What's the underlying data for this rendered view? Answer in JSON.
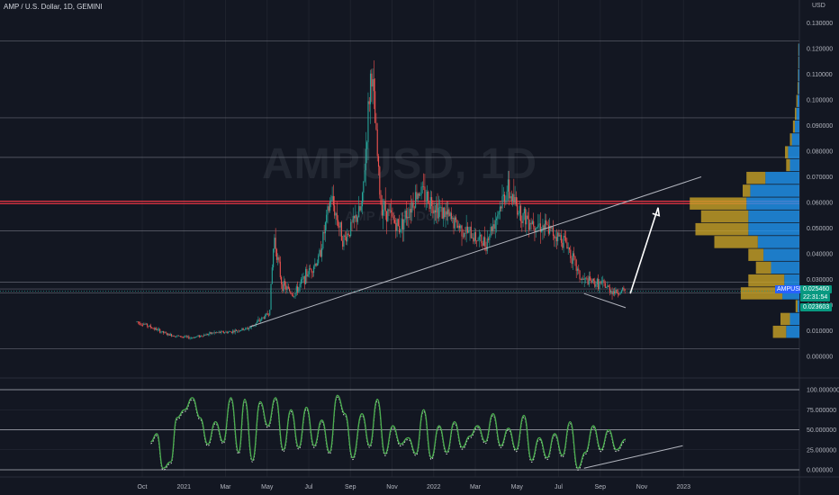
{
  "header": {
    "symbol": "AMP / U.S. Dollar, 1D, GEMINI",
    "currency": "USD",
    "watermark": "AMPUSD, 1D",
    "watermark_sub": "AMP / U.S. Dollar"
  },
  "tags": {
    "name": "AMPUSD",
    "price": "0.025460",
    "countdown": "22:31:54",
    "low": "0.023603"
  },
  "colors": {
    "background": "#131722",
    "candle_up": "#26a69a",
    "candle_down": "#ef5350",
    "resistance": "#f23645",
    "oscillator": "#4caf50",
    "vp_up": "#2196f3",
    "vp_down": "#c9a227"
  },
  "chart_data": [
    {
      "type": "candlestick",
      "title": "AMP / U.S. Dollar, 1D, GEMINI",
      "y_axis": {
        "label": "USD",
        "ticks": [
          "0.130000",
          "0.120000",
          "0.110000",
          "0.100000",
          "0.090000",
          "0.080000",
          "0.070000",
          "0.060000",
          "0.050000",
          "0.040000",
          "0.030000",
          "0.020000",
          "0.010000",
          "0.000000"
        ],
        "ylim": [
          0.0,
          0.13
        ]
      },
      "x_axis": {
        "ticks": [
          "Oct",
          "2021",
          "Mar",
          "May",
          "Jul",
          "Sep",
          "Nov",
          "2022",
          "Mar",
          "May",
          "Jul",
          "Sep",
          "Nov",
          "2023"
        ]
      },
      "price_path": [
        {
          "t": 0,
          "v": 0.0135
        },
        {
          "t": 0.5,
          "v": 0.0125
        },
        {
          "t": 2,
          "v": 0.0085
        },
        {
          "t": 3.5,
          "v": 0.0072
        },
        {
          "t": 5,
          "v": 0.0092
        },
        {
          "t": 6,
          "v": 0.0095
        },
        {
          "t": 7.3,
          "v": 0.011
        },
        {
          "t": 8.6,
          "v": 0.017
        },
        {
          "t": 8.9,
          "v": 0.047
        },
        {
          "t": 9.4,
          "v": 0.028
        },
        {
          "t": 10.2,
          "v": 0.024
        },
        {
          "t": 11,
          "v": 0.032
        },
        {
          "t": 11.8,
          "v": 0.038
        },
        {
          "t": 12.6,
          "v": 0.062
        },
        {
          "t": 13.4,
          "v": 0.045
        },
        {
          "t": 14.6,
          "v": 0.058
        },
        {
          "t": 15.2,
          "v": 0.113
        },
        {
          "t": 15.8,
          "v": 0.06
        },
        {
          "t": 17,
          "v": 0.05
        },
        {
          "t": 18.3,
          "v": 0.065
        },
        {
          "t": 19.5,
          "v": 0.058
        },
        {
          "t": 21,
          "v": 0.05
        },
        {
          "t": 22.6,
          "v": 0.044
        },
        {
          "t": 24,
          "v": 0.065
        },
        {
          "t": 25,
          "v": 0.055
        },
        {
          "t": 26.5,
          "v": 0.05
        },
        {
          "t": 27.8,
          "v": 0.045
        },
        {
          "t": 28.8,
          "v": 0.03
        },
        {
          "t": 30.2,
          "v": 0.028
        },
        {
          "t": 31,
          "v": 0.025
        },
        {
          "t": 31.7,
          "v": 0.0255
        }
      ],
      "horizontal_levels": [
        0.123,
        0.093,
        0.0776,
        0.049,
        0.0289,
        0.0263,
        0.0248,
        0.003
      ],
      "resistance_lines": [
        0.0605,
        0.0596
      ],
      "trendline": {
        "from": {
          "t": 7.3,
          "v": 0.0115
        },
        "to": {
          "t": 36.6,
          "v": 0.07
        }
      },
      "support_trendline": {
        "from": {
          "t": 29,
          "v": 0.0245
        },
        "to": {
          "t": 31.7,
          "v": 0.019
        }
      },
      "arrow": {
        "from": {
          "t": 32,
          "v": 0.0245
        },
        "to": {
          "t": 33.8,
          "v": 0.058
        }
      },
      "volume_profile": [
        {
          "price": 0.0095,
          "up": 0.35,
          "down": 0.35
        },
        {
          "price": 0.0145,
          "up": 0.25,
          "down": 0.25
        },
        {
          "price": 0.0195,
          "up": 0.05,
          "down": 0.05
        },
        {
          "price": 0.0245,
          "up": 0.45,
          "down": 1.1
        },
        {
          "price": 0.0295,
          "up": 0.4,
          "down": 0.95
        },
        {
          "price": 0.0345,
          "up": 0.75,
          "down": 0.4
        },
        {
          "price": 0.0395,
          "up": 0.95,
          "down": 0.4
        },
        {
          "price": 0.0445,
          "up": 1.1,
          "down": 1.15
        },
        {
          "price": 0.0495,
          "up": 1.35,
          "down": 1.4
        },
        {
          "price": 0.0545,
          "up": 1.35,
          "down": 1.25
        },
        {
          "price": 0.0595,
          "up": 1.4,
          "down": 1.5
        },
        {
          "price": 0.0645,
          "up": 1.3,
          "down": 0.2
        },
        {
          "price": 0.0695,
          "up": 0.9,
          "down": 0.5
        },
        {
          "price": 0.0745,
          "up": 0.25,
          "down": 0.1
        },
        {
          "price": 0.0795,
          "up": 0.3,
          "down": 0.08
        },
        {
          "price": 0.0845,
          "up": 0.2,
          "down": 0.05
        },
        {
          "price": 0.0895,
          "up": 0.12,
          "down": 0.05
        },
        {
          "price": 0.0945,
          "up": 0.08,
          "down": 0.04
        },
        {
          "price": 0.0995,
          "up": 0.05,
          "down": 0.03
        },
        {
          "price": 0.1045,
          "up": 0.03,
          "down": 0.02
        },
        {
          "price": 0.1095,
          "up": 0.03,
          "down": 0.01
        },
        {
          "price": 0.1145,
          "up": 0.02,
          "down": 0.01
        },
        {
          "price": 0.1195,
          "up": 0.02,
          "down": 0.01
        }
      ],
      "last_price": 0.02546,
      "session_low": 0.023603
    },
    {
      "type": "line",
      "y_axis": {
        "ticks": [
          "100.000000",
          "75.000000",
          "50.000000",
          "25.000000",
          "0.000000"
        ],
        "ylim": [
          0,
          100
        ]
      },
      "horizontal_levels": [
        100,
        50,
        0
      ],
      "oscillator_path": [
        {
          "t": 0.9,
          "v": 35
        },
        {
          "t": 1.3,
          "v": 45
        },
        {
          "t": 1.7,
          "v": 2
        },
        {
          "t": 2.2,
          "v": 10
        },
        {
          "t": 2.6,
          "v": 65
        },
        {
          "t": 3.1,
          "v": 75
        },
        {
          "t": 3.6,
          "v": 90
        },
        {
          "t": 4.1,
          "v": 65
        },
        {
          "t": 4.6,
          "v": 32
        },
        {
          "t": 5.1,
          "v": 60
        },
        {
          "t": 5.6,
          "v": 35
        },
        {
          "t": 6.1,
          "v": 90
        },
        {
          "t": 6.6,
          "v": 22
        },
        {
          "t": 7.0,
          "v": 88
        },
        {
          "t": 7.5,
          "v": 12
        },
        {
          "t": 8.0,
          "v": 85
        },
        {
          "t": 8.5,
          "v": 55
        },
        {
          "t": 9.0,
          "v": 90
        },
        {
          "t": 9.5,
          "v": 25
        },
        {
          "t": 10.0,
          "v": 75
        },
        {
          "t": 10.5,
          "v": 28
        },
        {
          "t": 11.0,
          "v": 78
        },
        {
          "t": 11.5,
          "v": 30
        },
        {
          "t": 12.0,
          "v": 62
        },
        {
          "t": 12.5,
          "v": 22
        },
        {
          "t": 13.0,
          "v": 93
        },
        {
          "t": 13.5,
          "v": 70
        },
        {
          "t": 14.0,
          "v": 15
        },
        {
          "t": 14.6,
          "v": 70
        },
        {
          "t": 15.1,
          "v": 30
        },
        {
          "t": 15.6,
          "v": 88
        },
        {
          "t": 16.1,
          "v": 20
        },
        {
          "t": 16.6,
          "v": 55
        },
        {
          "t": 17.1,
          "v": 32
        },
        {
          "t": 17.6,
          "v": 40
        },
        {
          "t": 18.1,
          "v": 20
        },
        {
          "t": 18.6,
          "v": 75
        },
        {
          "t": 19.1,
          "v": 15
        },
        {
          "t": 19.6,
          "v": 55
        },
        {
          "t": 20.1,
          "v": 22
        },
        {
          "t": 20.6,
          "v": 60
        },
        {
          "t": 21.1,
          "v": 28
        },
        {
          "t": 21.6,
          "v": 42
        },
        {
          "t": 22.1,
          "v": 55
        },
        {
          "t": 22.6,
          "v": 35
        },
        {
          "t": 23.1,
          "v": 70
        },
        {
          "t": 23.6,
          "v": 30
        },
        {
          "t": 24.1,
          "v": 52
        },
        {
          "t": 24.6,
          "v": 25
        },
        {
          "t": 25.1,
          "v": 68
        },
        {
          "t": 25.6,
          "v": 12
        },
        {
          "t": 26.1,
          "v": 40
        },
        {
          "t": 26.6,
          "v": 15
        },
        {
          "t": 27.1,
          "v": 45
        },
        {
          "t": 27.6,
          "v": 18
        },
        {
          "t": 28.1,
          "v": 60
        },
        {
          "t": 28.6,
          "v": 2
        },
        {
          "t": 29.1,
          "v": 22
        },
        {
          "t": 29.6,
          "v": 55
        },
        {
          "t": 30.1,
          "v": 25
        },
        {
          "t": 30.6,
          "v": 50
        },
        {
          "t": 31.1,
          "v": 25
        },
        {
          "t": 31.7,
          "v": 38
        }
      ],
      "trendline": {
        "from": {
          "t": 29,
          "v": 2
        },
        "to": {
          "t": 35.4,
          "v": 30
        }
      }
    }
  ]
}
